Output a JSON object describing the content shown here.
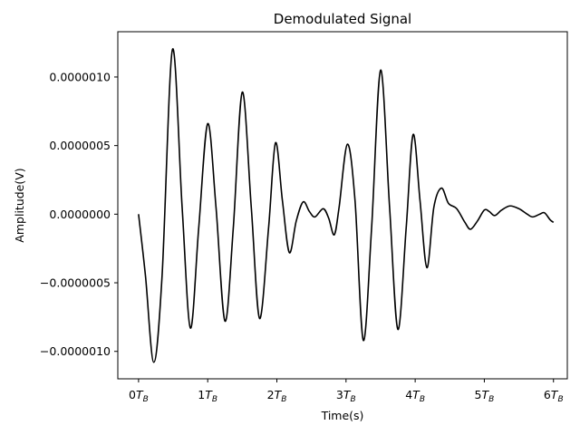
{
  "chart_data": {
    "type": "line",
    "title": "Demodulated Signal",
    "xlabel": "Time(s)",
    "ylabel": "Amplitude(V)",
    "xlim": [
      -0.3,
      6.2
    ],
    "ylim": [
      -1.2e-06,
      1.33e-06
    ],
    "grid": false,
    "legend": "none",
    "line_color": "#000000",
    "x_ticks": [
      {
        "value": 0,
        "num": "0"
      },
      {
        "value": 1,
        "num": "1"
      },
      {
        "value": 2,
        "num": "2"
      },
      {
        "value": 3,
        "num": "3"
      },
      {
        "value": 4,
        "num": "4"
      },
      {
        "value": 5,
        "num": "5"
      },
      {
        "value": 6,
        "num": "6"
      }
    ],
    "x_tick_symbol": "T",
    "x_tick_subscript": "B",
    "y_ticks": [
      {
        "value": -1e-06,
        "label": "−0.0000010"
      },
      {
        "value": -5e-07,
        "label": "−0.0000005"
      },
      {
        "value": 0,
        "label": "0.0000000"
      },
      {
        "value": 5e-07,
        "label": "0.0000005"
      },
      {
        "value": 1e-06,
        "label": "0.0000010"
      }
    ],
    "series": [
      {
        "points": [
          [
            0.0,
            0.0
          ],
          [
            0.1,
            -4.5e-07
          ],
          [
            0.22,
            -1.08e-06
          ],
          [
            0.34,
            -4.5e-07
          ],
          [
            0.49,
            1.2e-06
          ],
          [
            0.63,
            5e-08
          ],
          [
            0.75,
            -8.3e-07
          ],
          [
            0.87,
            -1e-07
          ],
          [
            1.0,
            6.6e-07
          ],
          [
            1.12,
            5e-08
          ],
          [
            1.25,
            -7.8e-07
          ],
          [
            1.37,
            -1e-07
          ],
          [
            1.5,
            8.9e-07
          ],
          [
            1.63,
            5e-08
          ],
          [
            1.75,
            -7.6e-07
          ],
          [
            1.88,
            -1e-07
          ],
          [
            1.98,
            5.2e-07
          ],
          [
            2.08,
            1e-07
          ],
          [
            2.18,
            -2.8e-07
          ],
          [
            2.28,
            -5e-08
          ],
          [
            2.38,
            9e-08
          ],
          [
            2.47,
            2e-08
          ],
          [
            2.55,
            -2e-08
          ],
          [
            2.67,
            4e-08
          ],
          [
            2.75,
            -3e-08
          ],
          [
            2.83,
            -1.5e-07
          ],
          [
            2.9,
            5e-08
          ],
          [
            3.02,
            5.1e-07
          ],
          [
            3.13,
            1e-07
          ],
          [
            3.25,
            -9.2e-07
          ],
          [
            3.37,
            -1e-07
          ],
          [
            3.5,
            1.05e-06
          ],
          [
            3.63,
            5e-08
          ],
          [
            3.75,
            -8.4e-07
          ],
          [
            3.87,
            -1e-07
          ],
          [
            3.97,
            5.8e-07
          ],
          [
            4.07,
            1e-07
          ],
          [
            4.17,
            -3.9e-07
          ],
          [
            4.27,
            5e-08
          ],
          [
            4.38,
            1.9e-07
          ],
          [
            4.48,
            8e-08
          ],
          [
            4.6,
            4e-08
          ],
          [
            4.72,
            -6e-08
          ],
          [
            4.8,
            -1.1e-07
          ],
          [
            4.9,
            -5e-08
          ],
          [
            5.0,
            3e-08
          ],
          [
            5.07,
            2e-08
          ],
          [
            5.15,
            -1e-08
          ],
          [
            5.25,
            3e-08
          ],
          [
            5.37,
            6e-08
          ],
          [
            5.5,
            4e-08
          ],
          [
            5.62,
            0.0
          ],
          [
            5.7,
            -2e-08
          ],
          [
            5.8,
            0.0
          ],
          [
            5.87,
            1e-08
          ],
          [
            5.95,
            -4e-08
          ],
          [
            6.0,
            -6e-08
          ]
        ]
      }
    ]
  }
}
